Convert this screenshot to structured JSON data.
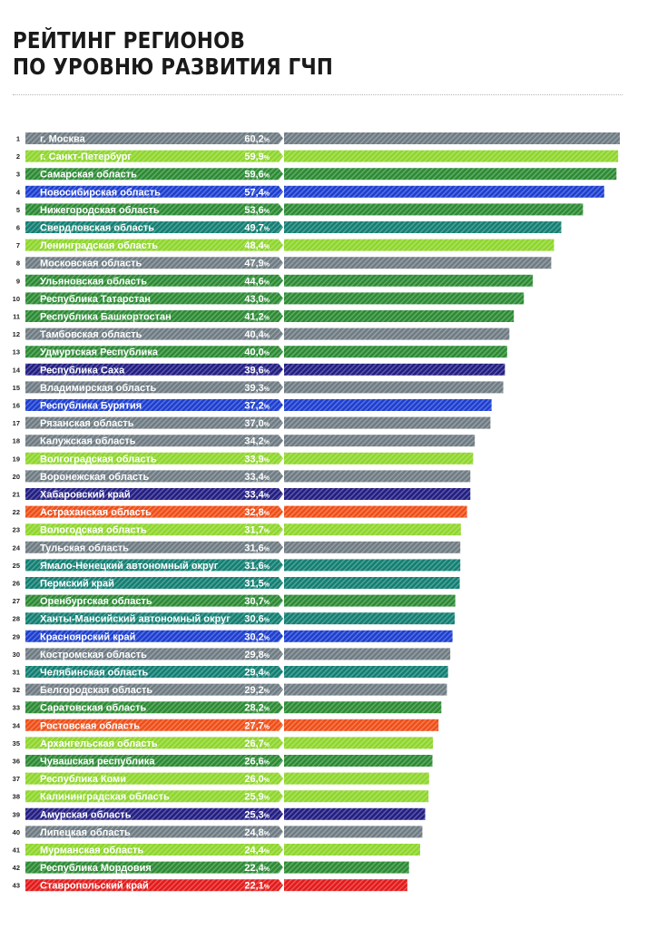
{
  "title": {
    "line1": "РЕЙТИНГ РЕГИОНОВ",
    "line2": "ПО УРОВНЮ РАЗВИТИЯ ГЧП"
  },
  "colors": {
    "gray": "#6f7c83",
    "lightgreen": "#8fd62c",
    "green": "#2c8b34",
    "blue": "#1d3fd0",
    "teal": "#137f73",
    "navy": "#231e83",
    "orange": "#ef4f18",
    "red": "#e31b1b"
  },
  "chart_data": {
    "type": "bar",
    "orientation": "horizontal",
    "title": "РЕЙТИНГ РЕГИОНОВ ПО УРОВНЮ РАЗВИТИЯ ГЧП",
    "unit": "%",
    "xlim": [
      0,
      60.2
    ],
    "grid": false,
    "legend": "none",
    "rows": [
      {
        "rank": "1",
        "name": "г. Москва",
        "value": 60.2,
        "label": "60,2",
        "color": "gray"
      },
      {
        "rank": "2",
        "name": "г. Санкт-Петербург",
        "value": 59.9,
        "label": "59,9",
        "color": "lightgreen"
      },
      {
        "rank": "3",
        "name": "Самарская область",
        "value": 59.6,
        "label": "59,6",
        "color": "green"
      },
      {
        "rank": "4",
        "name": "Новосибирская область",
        "value": 57.4,
        "label": "57,4",
        "color": "blue"
      },
      {
        "rank": "5",
        "name": "Нижегородская область",
        "value": 53.6,
        "label": "53,6",
        "color": "green"
      },
      {
        "rank": "6",
        "name": "Свердловская область",
        "value": 49.7,
        "label": "49,7",
        "color": "teal"
      },
      {
        "rank": "7",
        "name": "Ленинградская область",
        "value": 48.4,
        "label": "48,4",
        "color": "lightgreen"
      },
      {
        "rank": "8",
        "name": "Московская область",
        "value": 47.9,
        "label": "47,9",
        "color": "gray"
      },
      {
        "rank": "9",
        "name": "Ульяновская область",
        "value": 44.6,
        "label": "44,6",
        "color": "green"
      },
      {
        "rank": "10",
        "name": "Республика Татарстан",
        "value": 43.0,
        "label": "43,0",
        "color": "green"
      },
      {
        "rank": "11",
        "name": "Республика Башкортостан",
        "value": 41.2,
        "label": "41,2",
        "color": "green"
      },
      {
        "rank": "12",
        "name": "Тамбовская область",
        "value": 40.4,
        "label": "40,4",
        "color": "gray"
      },
      {
        "rank": "13",
        "name": "Удмуртская Республика",
        "value": 40.0,
        "label": "40,0",
        "color": "green"
      },
      {
        "rank": "14",
        "name": "Республика Саха",
        "value": 39.6,
        "label": "39,6",
        "color": "navy"
      },
      {
        "rank": "15",
        "name": "Владимирская область",
        "value": 39.3,
        "label": "39,3",
        "color": "gray"
      },
      {
        "rank": "16",
        "name": "Республика Бурятия",
        "value": 37.2,
        "label": "37,2",
        "color": "blue"
      },
      {
        "rank": "17",
        "name": "Рязанская область",
        "value": 37.0,
        "label": "37,0",
        "color": "gray"
      },
      {
        "rank": "18",
        "name": "Калужская область",
        "value": 34.2,
        "label": "34,2",
        "color": "gray"
      },
      {
        "rank": "19",
        "name": "Волгоградская область",
        "value": 33.9,
        "label": "33,9",
        "color": "lightgreen"
      },
      {
        "rank": "20",
        "name": "Воронежская область",
        "value": 33.4,
        "label": "33,4",
        "color": "gray"
      },
      {
        "rank": "21",
        "name": "Хабаровский край",
        "value": 33.4,
        "label": "33,4",
        "color": "navy"
      },
      {
        "rank": "22",
        "name": "Астраханская область",
        "value": 32.8,
        "label": "32,8",
        "color": "orange"
      },
      {
        "rank": "23",
        "name": "Вологодская область",
        "value": 31.7,
        "label": "31,7",
        "color": "lightgreen"
      },
      {
        "rank": "24",
        "name": "Тульская область",
        "value": 31.6,
        "label": "31,6",
        "color": "gray"
      },
      {
        "rank": "25",
        "name": "Ямало-Ненецкий автономный округ",
        "value": 31.6,
        "label": "31,6",
        "color": "teal"
      },
      {
        "rank": "26",
        "name": "Пермский край",
        "value": 31.5,
        "label": "31,5",
        "color": "teal"
      },
      {
        "rank": "27",
        "name": "Оренбургская область",
        "value": 30.7,
        "label": "30,7",
        "color": "green"
      },
      {
        "rank": "28",
        "name": "Ханты-Мансийский автономный округ",
        "value": 30.6,
        "label": "30,6",
        "color": "teal"
      },
      {
        "rank": "29",
        "name": "Красноярский край",
        "value": 30.2,
        "label": "30,2",
        "color": "blue"
      },
      {
        "rank": "30",
        "name": "Костромская область",
        "value": 29.8,
        "label": "29,8",
        "color": "gray"
      },
      {
        "rank": "31",
        "name": "Челябинская область",
        "value": 29.4,
        "label": "29,4",
        "color": "teal"
      },
      {
        "rank": "32",
        "name": "Белгородская область",
        "value": 29.2,
        "label": "29,2",
        "color": "gray"
      },
      {
        "rank": "33",
        "name": "Саратовская область",
        "value": 28.2,
        "label": "28,2",
        "color": "green"
      },
      {
        "rank": "34",
        "name": "Ростовская область",
        "value": 27.7,
        "label": "27,7",
        "color": "orange"
      },
      {
        "rank": "35",
        "name": "Архангельская область",
        "value": 26.7,
        "label": "26,7",
        "color": "lightgreen"
      },
      {
        "rank": "36",
        "name": "Чувашская республика",
        "value": 26.6,
        "label": "26,6",
        "color": "green"
      },
      {
        "rank": "37",
        "name": "Республика Коми",
        "value": 26.0,
        "label": "26,0",
        "color": "lightgreen"
      },
      {
        "rank": "38",
        "name": "Калининградская область",
        "value": 25.9,
        "label": "25,9",
        "color": "lightgreen"
      },
      {
        "rank": "39",
        "name": "Амурская область",
        "value": 25.3,
        "label": "25,3",
        "color": "navy"
      },
      {
        "rank": "40",
        "name": "Липецкая область",
        "value": 24.8,
        "label": "24,8",
        "color": "gray"
      },
      {
        "rank": "41",
        "name": "Мурманская область",
        "value": 24.4,
        "label": "24,4",
        "color": "lightgreen"
      },
      {
        "rank": "42",
        "name": "Республика Мордовия",
        "value": 22.4,
        "label": "22,4",
        "color": "green"
      },
      {
        "rank": "43",
        "name": "Ставропольский край",
        "value": 22.1,
        "label": "22,1",
        "color": "red"
      }
    ]
  }
}
